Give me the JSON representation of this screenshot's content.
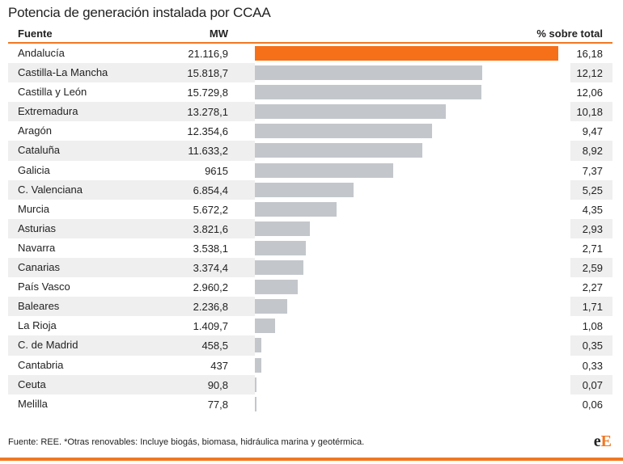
{
  "title": "Potencia de generación instalada por CCAA",
  "header": {
    "source": "Fuente",
    "mw": "MW",
    "pct": "% sobre total"
  },
  "chart_data": {
    "type": "table",
    "title": "Potencia de generación instalada por CCAA",
    "columns": [
      "Fuente",
      "MW",
      "% sobre total"
    ],
    "max_pct": 16.18,
    "rows": [
      {
        "name": "Andalucía",
        "mw": "21.116,9",
        "pct_label": "16,18",
        "pct": 16.18,
        "highlight": true
      },
      {
        "name": "Castilla-La Mancha",
        "mw": "15.818,7",
        "pct_label": "12,12",
        "pct": 12.12
      },
      {
        "name": "Castilla y León",
        "mw": "15.729,8",
        "pct_label": "12,06",
        "pct": 12.06
      },
      {
        "name": "Extremadura",
        "mw": "13.278,1",
        "pct_label": "10,18",
        "pct": 10.18
      },
      {
        "name": "Aragón",
        "mw": "12.354,6",
        "pct_label": "9,47",
        "pct": 9.47
      },
      {
        "name": "Cataluña",
        "mw": "11.633,2",
        "pct_label": "8,92",
        "pct": 8.92
      },
      {
        "name": "Galicia",
        "mw": "9615",
        "pct_label": "7,37",
        "pct": 7.37
      },
      {
        "name": "C. Valenciana",
        "mw": "6.854,4",
        "pct_label": "5,25",
        "pct": 5.25
      },
      {
        "name": "Murcia",
        "mw": "5.672,2",
        "pct_label": "4,35",
        "pct": 4.35
      },
      {
        "name": "Asturias",
        "mw": "3.821,6",
        "pct_label": "2,93",
        "pct": 2.93
      },
      {
        "name": "Navarra",
        "mw": "3.538,1",
        "pct_label": "2,71",
        "pct": 2.71
      },
      {
        "name": "Canarias",
        "mw": "3.374,4",
        "pct_label": "2,59",
        "pct": 2.59
      },
      {
        "name": "País Vasco",
        "mw": "2.960,2",
        "pct_label": "2,27",
        "pct": 2.27
      },
      {
        "name": "Baleares",
        "mw": "2.236,8",
        "pct_label": "1,71",
        "pct": 1.71
      },
      {
        "name": "La Rioja",
        "mw": "1.409,7",
        "pct_label": "1,08",
        "pct": 1.08
      },
      {
        "name": "C. de Madrid",
        "mw": "458,5",
        "pct_label": "0,35",
        "pct": 0.35
      },
      {
        "name": "Cantabria",
        "mw": "437",
        "pct_label": "0,33",
        "pct": 0.33
      },
      {
        "name": "Ceuta",
        "mw": "90,8",
        "pct_label": "0,07",
        "pct": 0.07
      },
      {
        "name": "Melilla",
        "mw": "77,8",
        "pct_label": "0,06",
        "pct": 0.06
      }
    ],
    "colors": {
      "highlight": "#f57019",
      "bar": "#c3c7cc",
      "accent": "#f07822"
    }
  },
  "source": "Fuente: REE. *Otras renovables: Incluye biogás, biomasa, hidráulica marina y geotérmica.",
  "logo": {
    "part1": "e",
    "part2": "E"
  }
}
